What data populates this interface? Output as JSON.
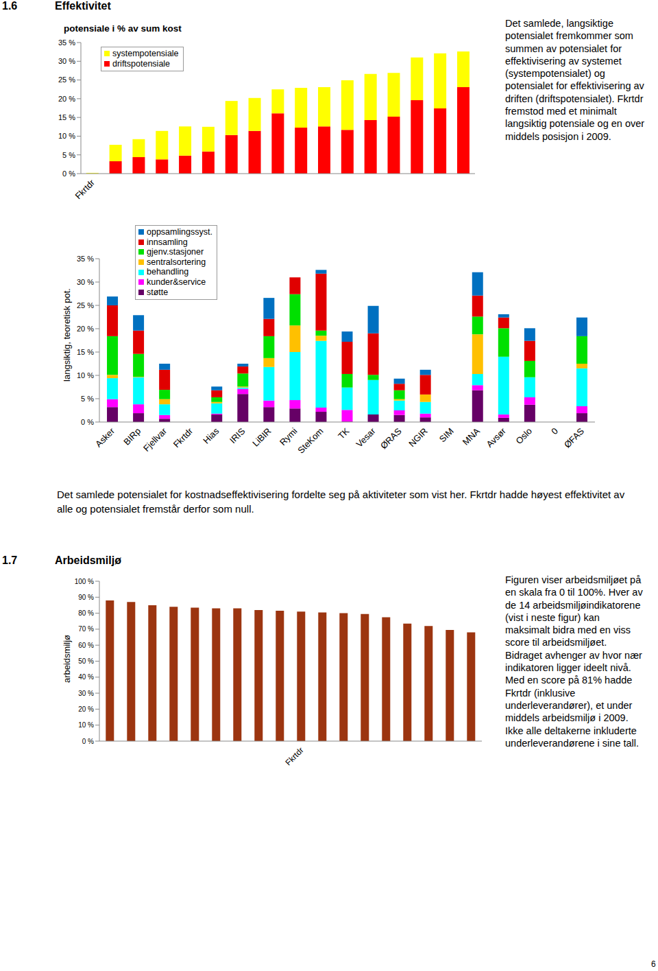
{
  "sections": [
    {
      "number": "1.6",
      "title": "Effektivitet"
    },
    {
      "number": "1.7",
      "title": "Arbeidsmiljø"
    }
  ],
  "texts": {
    "effektivitet_note": "Det samlede, langsiktige potensialet fremkommer som summen av potensialet for effektivisering av systemet (systempotensialet) og potensialet for effektivisering av driften (driftspotensialet). Fkrtdr fremstod med et minimalt langsiktig potensiale og en over middels posisjon i 2009.",
    "fordeling_caption": "Det samlede potensialet for kostnadseffektivisering fordelte seg på aktiviteter som vist her. Fkrtdr hadde høyest effektivitet av alle og potensialet fremstår derfor som null.",
    "arbeidsmiljo_note": "Figuren viser arbeidsmiljøet på en skala fra 0 til 100%. Hver av de 14 arbeidsmiljøindikatorene (vist i neste figur) kan maksimalt bidra med en viss score til arbeidsmiljøet. Bidraget avhenger av hvor nær indikatoren ligger ideelt nivå. Med en score på 81% hadde Fkrtdr (inklusive underleverandører), et under middels arbeidsmiljø i 2009. Ikke alle deltakerne inkluderte underleverandørene i sine tall."
  },
  "page_number": "6",
  "chart_data": [
    {
      "type": "bar",
      "title": "potensiale i % av sum kost",
      "stacked": true,
      "legend": "top-left",
      "grid": false,
      "categories": [
        "Fkrtdr",
        null,
        null,
        null,
        null,
        null,
        null,
        null,
        null,
        null,
        null,
        null,
        null,
        null,
        null,
        null,
        null
      ],
      "series": [
        {
          "name": "driftspotensiale",
          "color": "#ff0000",
          "values": [
            0,
            3.3,
            4.4,
            3.8,
            4.8,
            5.9,
            10.3,
            11.4,
            16.1,
            12.3,
            12.6,
            11.7,
            14.3,
            15.2,
            19.6,
            17.4,
            23.1
          ]
        },
        {
          "name": "systempotensiale",
          "color": "#ffff00",
          "values": [
            0.2,
            4.4,
            4.8,
            7.6,
            7.8,
            6.6,
            9.1,
            8.8,
            6.4,
            10.6,
            10.5,
            13.2,
            12.3,
            11.7,
            11.4,
            14.7,
            9.5
          ]
        }
      ],
      "ylim": [
        0,
        35
      ],
      "yticks": [
        {
          "value": 0,
          "label": "0 %"
        },
        {
          "value": 5,
          "label": "5 %"
        },
        {
          "value": 10,
          "label": "10 %"
        },
        {
          "value": 15,
          "label": "15 %"
        },
        {
          "value": 20,
          "label": "20 %"
        },
        {
          "value": 25,
          "label": "25 %"
        },
        {
          "value": 30,
          "label": "30 %"
        },
        {
          "value": 35,
          "label": "35 %"
        }
      ]
    },
    {
      "type": "bar",
      "y_label": "langsiktig, teoretisk pot.",
      "stacked": true,
      "legend": "top-left",
      "grid": false,
      "categories": [
        "Asker",
        "BIRp",
        "Fjellvar",
        "Fkrtdr",
        "Hias",
        "IRIS",
        "LiBIR",
        "Rymi",
        "SteKom",
        "TK",
        "Vesar",
        "ØRAS",
        "NGIR",
        "SIM",
        "MNA",
        "Avsør",
        "Oslo",
        "0",
        "ØFAS"
      ],
      "series": [
        {
          "name": "støtte",
          "color": "#660066",
          "values": [
            3.2,
            1.9,
            0.7,
            0,
            1.6,
            6.0,
            3.2,
            2.9,
            2.2,
            0.1,
            1.6,
            1.5,
            1.0,
            0,
            6.8,
            0.9,
            3.7,
            0,
            1.9
          ]
        },
        {
          "name": "kunder&service",
          "color": "#ff00ff",
          "values": [
            1.7,
            1.9,
            0.8,
            0,
            0.2,
            1.1,
            1.4,
            1.8,
            0.9,
            2.5,
            0,
            1.0,
            0.8,
            0,
            1.1,
            0.7,
            1.6,
            0,
            1.5
          ]
        },
        {
          "name": "behandling",
          "color": "#00ffff",
          "values": [
            4.5,
            5.8,
            2.3,
            0,
            2.2,
            0.3,
            7.2,
            10.3,
            14.3,
            4.8,
            7.4,
            2.1,
            2.5,
            0,
            2.4,
            12.4,
            4.3,
            0,
            8.1
          ]
        },
        {
          "name": "sentralsortering",
          "color": "#ffc000",
          "values": [
            0.7,
            0.1,
            1.1,
            0,
            0.3,
            0.2,
            1.9,
            5.7,
            1.1,
            0,
            0,
            0.3,
            1.6,
            0,
            8.5,
            0,
            0,
            0,
            1.0
          ]
        },
        {
          "name": "gjenv.stasjoner",
          "color": "#00e000",
          "values": [
            8.3,
            4.9,
            2.0,
            0,
            1.0,
            2.8,
            4.7,
            6.7,
            1.1,
            2.9,
            1.1,
            1.9,
            0,
            0,
            3.8,
            6.1,
            3.5,
            0,
            5.9
          ]
        },
        {
          "name": "innsamling",
          "color": "#e00000",
          "values": [
            6.6,
            5.0,
            4.3,
            0,
            1.5,
            1.5,
            3.7,
            3.6,
            12.2,
            6.9,
            8.9,
            1.4,
            4.2,
            0,
            4.5,
            2.3,
            4.3,
            0,
            0
          ]
        },
        {
          "name": "oppsamlingssyst.",
          "color": "#0070c0",
          "values": [
            1.9,
            3.3,
            1.3,
            0,
            0.8,
            0.6,
            4.5,
            0,
            0.8,
            2.2,
            5.9,
            1.1,
            1.1,
            0,
            5.0,
            0.7,
            2.7,
            0,
            4.0
          ]
        }
      ],
      "ylim": [
        0,
        35
      ],
      "yticks": [
        {
          "value": 0,
          "label": "0 %"
        },
        {
          "value": 5,
          "label": "5 %"
        },
        {
          "value": 10,
          "label": "10 %"
        },
        {
          "value": 15,
          "label": "15 %"
        },
        {
          "value": 20,
          "label": "20 %"
        },
        {
          "value": 25,
          "label": "25 %"
        },
        {
          "value": 30,
          "label": "30 %"
        },
        {
          "value": 35,
          "label": "35 %"
        }
      ]
    },
    {
      "type": "bar",
      "y_label": "arbeidsmiljø",
      "grid": false,
      "color": "#9c3510",
      "categories": [
        null,
        null,
        null,
        null,
        null,
        null,
        null,
        null,
        null,
        "Fkrtdr",
        null,
        null,
        null,
        null,
        null,
        null,
        null,
        null
      ],
      "values": [
        88,
        87,
        85,
        84,
        83.5,
        83,
        83,
        82,
        81.5,
        81,
        80.5,
        80,
        79.5,
        77.5,
        73.5,
        72,
        69.5,
        68
      ],
      "ylim": [
        0,
        100
      ],
      "yticks": [
        {
          "value": 0,
          "label": "0 %"
        },
        {
          "value": 10,
          "label": "10 %"
        },
        {
          "value": 20,
          "label": "20 %"
        },
        {
          "value": 30,
          "label": "30 %"
        },
        {
          "value": 40,
          "label": "40 %"
        },
        {
          "value": 50,
          "label": "50 %"
        },
        {
          "value": 60,
          "label": "60 %"
        },
        {
          "value": 70,
          "label": "70 %"
        },
        {
          "value": 80,
          "label": "80 %"
        },
        {
          "value": 90,
          "label": "90 %"
        },
        {
          "value": 100,
          "label": "100 %"
        }
      ]
    }
  ]
}
